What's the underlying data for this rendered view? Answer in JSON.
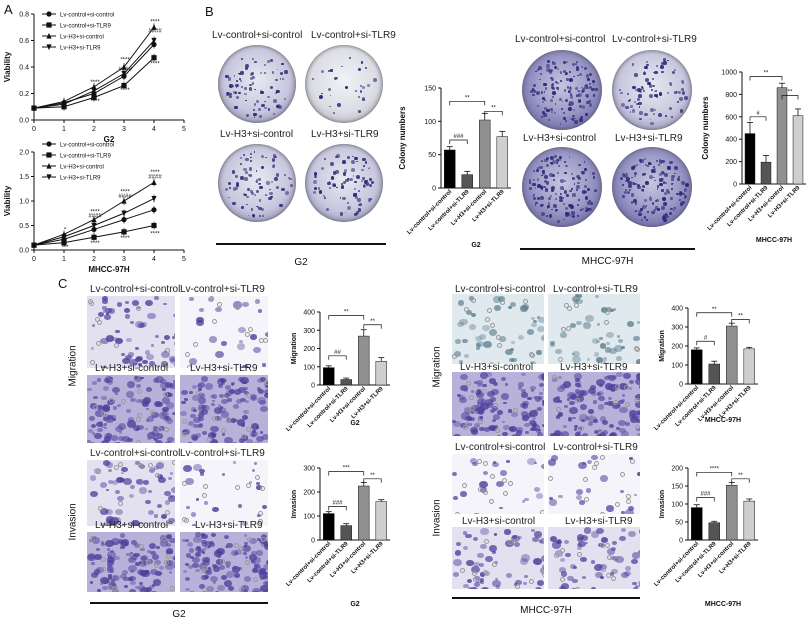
{
  "panel_letters": {
    "a": "A",
    "b": "B",
    "c": "C"
  },
  "legend": {
    "entries": [
      "Lv-control+si-control",
      "Lv-control+si-TLR9",
      "Lv-H3+si-control",
      "Lv-H3+si-TLR9"
    ]
  },
  "group_labels": [
    "Lv-control+si-control",
    "Lv-control+si-TLR9",
    "Lv-H3+si-control",
    "Lv-H3+si-TLR9"
  ],
  "photo_labels": {
    "lv_control_si_control": "Lv-control+si-control",
    "lv_control_si_tlr9": "Lv-control+si-TLR9",
    "lv_h3_si_control": "Lv-H3+si-control",
    "lv_h3_si_tlr9": "Lv-H3+si-TLR9"
  },
  "cell_lines": {
    "g2": "G2",
    "mhcc": "MHCC-97H"
  },
  "side_labels": {
    "migration": "Migration",
    "invasion": "Invasion"
  },
  "colors": {
    "black": "#000000",
    "dark_gray": "#555555",
    "gray": "#909090",
    "light_gray": "#cfcfcf",
    "violet": "#4b3f9a"
  },
  "chart_data": [
    {
      "id": "viab_g2",
      "type": "line",
      "title": "G2",
      "ylabel": "Viability",
      "x": [
        0,
        1,
        2,
        3,
        4
      ],
      "xlim": [
        0,
        5
      ],
      "ylim": [
        0,
        0.8
      ],
      "yticks": [
        "0.0",
        "0.2",
        "0.4",
        "0.6",
        "0.8"
      ],
      "xticks": [
        "0",
        "1",
        "2",
        "3",
        "4",
        "5"
      ],
      "series": [
        {
          "name": "Lv-control+si-control",
          "marker": "circle",
          "values": [
            0.09,
            0.13,
            0.2,
            0.33,
            0.57
          ]
        },
        {
          "name": "Lv-control+si-TLR9",
          "marker": "square",
          "values": [
            0.09,
            0.1,
            0.17,
            0.26,
            0.47
          ]
        },
        {
          "name": "Lv-H3+si-control",
          "marker": "triangle",
          "values": [
            0.09,
            0.14,
            0.25,
            0.4,
            0.7
          ]
        },
        {
          "name": "Lv-H3+si-TLR9",
          "marker": "triangle-down",
          "values": [
            0.09,
            0.12,
            0.22,
            0.35,
            0.6
          ]
        }
      ],
      "annotations": [
        {
          "x": 2,
          "y": 0.27,
          "text": "****"
        },
        {
          "x": 2,
          "y": 0.13,
          "text": "****"
        },
        {
          "x": 3,
          "y": 0.44,
          "text": "****"
        },
        {
          "x": 3,
          "y": 0.37,
          "text": "####"
        },
        {
          "x": 3,
          "y": 0.21,
          "text": "****"
        },
        {
          "x": 4,
          "y": 0.73,
          "text": "****"
        },
        {
          "x": 4,
          "y": 0.66,
          "text": "####"
        },
        {
          "x": 4,
          "y": 0.41,
          "text": "****"
        }
      ]
    },
    {
      "id": "viab_mhcc",
      "type": "line",
      "title": "MHCC-97H",
      "ylabel": "Viability",
      "x": [
        0,
        1,
        2,
        3,
        4
      ],
      "xlim": [
        0,
        5
      ],
      "ylim": [
        0,
        2.0
      ],
      "yticks": [
        "0.0",
        "0.5",
        "1.0",
        "1.5",
        "2.0"
      ],
      "xticks": [
        "0",
        "1",
        "2",
        "3",
        "4",
        "5"
      ],
      "series": [
        {
          "name": "Lv-control+si-control",
          "marker": "circle",
          "values": [
            0.1,
            0.22,
            0.42,
            0.62,
            0.82
          ]
        },
        {
          "name": "Lv-control+si-TLR9",
          "marker": "square",
          "values": [
            0.1,
            0.15,
            0.26,
            0.37,
            0.5
          ]
        },
        {
          "name": "Lv-H3+si-control",
          "marker": "triangle",
          "values": [
            0.1,
            0.32,
            0.62,
            1.0,
            1.38
          ]
        },
        {
          "name": "Lv-H3+si-TLR9",
          "marker": "triangle-down",
          "values": [
            0.1,
            0.27,
            0.5,
            0.75,
            1.05
          ]
        }
      ],
      "annotations": [
        {
          "x": 1,
          "y": 0.38,
          "text": "*"
        },
        {
          "x": 1,
          "y": 0.02,
          "text": "***"
        },
        {
          "x": 2,
          "y": 0.75,
          "text": "****"
        },
        {
          "x": 2,
          "y": 0.66,
          "text": "####"
        },
        {
          "x": 2,
          "y": 0.1,
          "text": "****"
        },
        {
          "x": 3,
          "y": 1.15,
          "text": "****"
        },
        {
          "x": 3,
          "y": 1.06,
          "text": "####"
        },
        {
          "x": 3,
          "y": 0.2,
          "text": "****"
        },
        {
          "x": 4,
          "y": 1.55,
          "text": "****"
        },
        {
          "x": 4,
          "y": 1.46,
          "text": "####"
        },
        {
          "x": 4,
          "y": 0.3,
          "text": "****"
        }
      ]
    },
    {
      "id": "colony_g2",
      "type": "bar",
      "title": "G2",
      "ylabel": "Colony numbers",
      "categories": [
        "Lv-control+si-control",
        "Lv-control+si-TLR9",
        "Lv-H3+si-control",
        "Lv-H3+si-TLR9"
      ],
      "values": [
        57,
        20,
        102,
        77
      ],
      "errors": [
        5,
        5,
        10,
        8
      ],
      "ylim": [
        0,
        150
      ],
      "yticks": [
        "0",
        "50",
        "100",
        "150"
      ],
      "brackets": [
        {
          "from": 0,
          "to": 1,
          "y": 72,
          "text": "###"
        },
        {
          "from": 0,
          "to": 2,
          "y": 130,
          "text": "**"
        },
        {
          "from": 2,
          "to": 3,
          "y": 115,
          "text": "**"
        }
      ]
    },
    {
      "id": "colony_mhcc",
      "type": "bar",
      "title": "MHCC-97H",
      "ylabel": "Colony numbers",
      "categories": [
        "Lv-control+si-control",
        "Lv-control+si-TLR9",
        "Lv-H3+si-control",
        "Lv-H3+si-TLR9"
      ],
      "values": [
        450,
        195,
        860,
        610
      ],
      "errors": [
        100,
        60,
        40,
        60
      ],
      "ylim": [
        0,
        1000
      ],
      "yticks": [
        "0",
        "200",
        "400",
        "600",
        "800",
        "1000"
      ],
      "brackets": [
        {
          "from": 0,
          "to": 1,
          "y": 600,
          "text": "#"
        },
        {
          "from": 0,
          "to": 2,
          "y": 960,
          "text": "**"
        },
        {
          "from": 2,
          "to": 3,
          "y": 790,
          "text": "**"
        }
      ]
    },
    {
      "id": "migration_g2",
      "type": "bar",
      "title": "G2",
      "ylabel": "Migration",
      "categories": [
        "Lv-control+si-control",
        "Lv-control+si-TLR9",
        "Lv-H3+si-control",
        "Lv-H3+si-TLR9"
      ],
      "values": [
        95,
        30,
        268,
        130
      ],
      "errors": [
        10,
        8,
        35,
        20
      ],
      "ylim": [
        0,
        400
      ],
      "yticks": [
        "0",
        "100",
        "200",
        "300",
        "400"
      ],
      "brackets": [
        {
          "from": 0,
          "to": 1,
          "y": 160,
          "text": "##"
        },
        {
          "from": 0,
          "to": 2,
          "y": 380,
          "text": "**"
        },
        {
          "from": 2,
          "to": 3,
          "y": 330,
          "text": "**"
        }
      ]
    },
    {
      "id": "migration_mhcc",
      "type": "bar",
      "title": "MHCC-97H",
      "ylabel": "Migration",
      "categories": [
        "Lv-control+si-control",
        "Lv-control+si-TLR9",
        "Lv-H3+si-control",
        "Lv-H3+si-TLR9"
      ],
      "values": [
        180,
        105,
        305,
        185
      ],
      "errors": [
        10,
        15,
        15,
        8
      ],
      "ylim": [
        0,
        400
      ],
      "yticks": [
        "0",
        "100",
        "200",
        "300",
        "400"
      ],
      "brackets": [
        {
          "from": 0,
          "to": 1,
          "y": 225,
          "text": "#"
        },
        {
          "from": 0,
          "to": 2,
          "y": 375,
          "text": "**"
        },
        {
          "from": 2,
          "to": 3,
          "y": 340,
          "text": "**"
        }
      ]
    },
    {
      "id": "invasion_g2",
      "type": "bar",
      "title": "G2",
      "ylabel": "Invasion",
      "categories": [
        "Lv-control+si-control",
        "Lv-control+si-TLR9",
        "Lv-H3+si-control",
        "Lv-H3+si-TLR9"
      ],
      "values": [
        110,
        60,
        225,
        160
      ],
      "errors": [
        8,
        8,
        15,
        8
      ],
      "ylim": [
        0,
        300
      ],
      "yticks": [
        "0",
        "100",
        "200",
        "300"
      ],
      "brackets": [
        {
          "from": 0,
          "to": 1,
          "y": 140,
          "text": "###"
        },
        {
          "from": 0,
          "to": 2,
          "y": 285,
          "text": "***"
        },
        {
          "from": 2,
          "to": 3,
          "y": 255,
          "text": "**"
        }
      ]
    },
    {
      "id": "invasion_mhcc",
      "type": "bar",
      "title": "MHCC-97H",
      "ylabel": "Invasion",
      "categories": [
        "Lv-control+si-control",
        "Lv-control+si-TLR9",
        "Lv-H3+si-control",
        "Lv-H3+si-TLR9"
      ],
      "values": [
        90,
        48,
        152,
        108
      ],
      "errors": [
        8,
        4,
        8,
        6
      ],
      "ylim": [
        0,
        200
      ],
      "yticks": [
        "0",
        "50",
        "100",
        "150",
        "200"
      ],
      "brackets": [
        {
          "from": 0,
          "to": 1,
          "y": 118,
          "text": "###"
        },
        {
          "from": 0,
          "to": 2,
          "y": 188,
          "text": "****"
        },
        {
          "from": 2,
          "to": 3,
          "y": 170,
          "text": "**"
        }
      ]
    }
  ]
}
